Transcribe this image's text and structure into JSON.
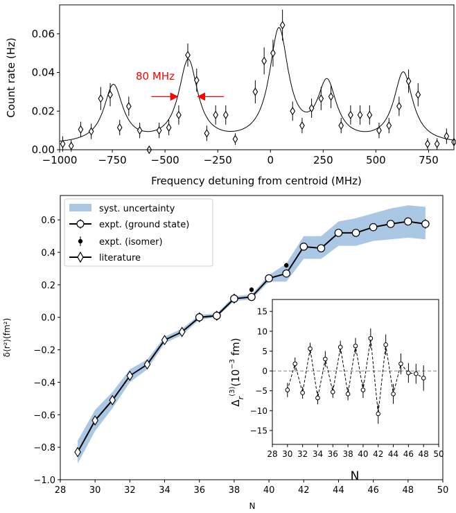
{
  "chart_data": [
    {
      "type": "scatter",
      "xlabel": "Frequency detuning from centroid (MHz)",
      "ylabel": "Count rate (Hz)",
      "xlim": [
        -1000,
        870
      ],
      "ylim": [
        0,
        0.075
      ],
      "xticks": [
        "−1000",
        "−750",
        "−500",
        "−250",
        "0",
        "250",
        "500",
        "750"
      ],
      "xtick_values": [
        -1000,
        -750,
        -500,
        -250,
        0,
        250,
        500,
        750
      ],
      "yticks": [
        "0.00",
        "0.02",
        "0.04",
        "0.06"
      ],
      "ytick_values": [
        0,
        0.02,
        0.04,
        0.06
      ],
      "annotation": {
        "text": "80 MHz",
        "color": "#ff0000",
        "arrow_from": [
          -440,
          0.0275
        ],
        "arrow_to": [
          -220,
          0.0275
        ]
      },
      "series": [
        {
          "kind": "data",
          "points": [
            {
              "x": -985,
              "y": 0.003,
              "err": 0.004
            },
            {
              "x": -945,
              "y": 0.002,
              "err": 0.003
            },
            {
              "x": -900,
              "y": 0.0105,
              "err": 0.004
            },
            {
              "x": -850,
              "y": 0.0095,
              "err": 0.004
            },
            {
              "x": -805,
              "y": 0.0265,
              "err": 0.006
            },
            {
              "x": -760,
              "y": 0.0285,
              "err": 0.006
            },
            {
              "x": -715,
              "y": 0.0115,
              "err": 0.004
            },
            {
              "x": -672,
              "y": 0.0225,
              "err": 0.005
            },
            {
              "x": -620,
              "y": 0.01,
              "err": 0.004
            },
            {
              "x": -575,
              "y": 0.0,
              "err": 0.002
            },
            {
              "x": -528,
              "y": 0.01,
              "err": 0.004
            },
            {
              "x": -482,
              "y": 0.0115,
              "err": 0.004
            },
            {
              "x": -435,
              "y": 0.018,
              "err": 0.005
            },
            {
              "x": -392,
              "y": 0.049,
              "err": 0.006
            },
            {
              "x": -350,
              "y": 0.036,
              "err": 0.006
            },
            {
              "x": -302,
              "y": 0.0085,
              "err": 0.004
            },
            {
              "x": -260,
              "y": 0.018,
              "err": 0.005
            },
            {
              "x": -212,
              "y": 0.018,
              "err": 0.005
            },
            {
              "x": -167,
              "y": 0.0055,
              "err": 0.003
            },
            {
              "x": -72,
              "y": 0.03,
              "err": 0.006
            },
            {
              "x": -30,
              "y": 0.046,
              "err": 0.007
            },
            {
              "x": 12,
              "y": 0.05,
              "err": 0.007
            },
            {
              "x": 57,
              "y": 0.0645,
              "err": 0.008
            },
            {
              "x": 105,
              "y": 0.02,
              "err": 0.005
            },
            {
              "x": 150,
              "y": 0.0125,
              "err": 0.004
            },
            {
              "x": 195,
              "y": 0.0215,
              "err": 0.005
            },
            {
              "x": 240,
              "y": 0.0265,
              "err": 0.006
            },
            {
              "x": 287,
              "y": 0.0275,
              "err": 0.006
            },
            {
              "x": 335,
              "y": 0.0125,
              "err": 0.004
            },
            {
              "x": 380,
              "y": 0.018,
              "err": 0.005
            },
            {
              "x": 425,
              "y": 0.018,
              "err": 0.005
            },
            {
              "x": 470,
              "y": 0.018,
              "err": 0.005
            },
            {
              "x": 515,
              "y": 0.01,
              "err": 0.004
            },
            {
              "x": 562,
              "y": 0.0125,
              "err": 0.004
            },
            {
              "x": 610,
              "y": 0.0225,
              "err": 0.005
            },
            {
              "x": 655,
              "y": 0.0355,
              "err": 0.006
            },
            {
              "x": 700,
              "y": 0.0285,
              "err": 0.006
            },
            {
              "x": 745,
              "y": 0.003,
              "err": 0.003
            },
            {
              "x": 790,
              "y": 0.003,
              "err": 0.003
            },
            {
              "x": 835,
              "y": 0.007,
              "err": 0.004
            },
            {
              "x": 870,
              "y": 0.004,
              "err": 0.003
            }
          ]
        },
        {
          "kind": "fit",
          "baseline": 0.0025,
          "width": 55,
          "peaks": [
            {
              "center": -745,
              "amplitude": 0.03
            },
            {
              "center": -390,
              "amplitude": 0.0425
            },
            {
              "center": 40,
              "amplitude": 0.058
            },
            {
              "center": 268,
              "amplitude": 0.03
            },
            {
              "center": 630,
              "amplitude": 0.0365
            }
          ]
        }
      ]
    },
    {
      "type": "line",
      "xlabel": "N",
      "ylabel": "δ⟨r²⟩(fm²)",
      "xlim": [
        28,
        50
      ],
      "ylim": [
        -1.0,
        0.75
      ],
      "xticks": [
        "28",
        "30",
        "32",
        "34",
        "36",
        "38",
        "40",
        "42",
        "44",
        "46",
        "48",
        "50"
      ],
      "xtick_values": [
        28,
        30,
        32,
        34,
        36,
        38,
        40,
        42,
        44,
        46,
        48,
        50
      ],
      "yticks": [
        "−1.0",
        "−0.8",
        "−0.6",
        "−0.4",
        "−0.2",
        "0.0",
        "0.2",
        "0.4",
        "0.6"
      ],
      "ytick_values": [
        -1.0,
        -0.8,
        -0.6,
        -0.4,
        -0.2,
        0.0,
        0.2,
        0.4,
        0.6
      ],
      "legend": {
        "placement": "upper-left",
        "entries": [
          "syst. uncertainty",
          "expt. (ground state)",
          "expt. (isomer)",
          "literature"
        ]
      },
      "band_color": "#aac8e4",
      "band": {
        "x": [
          29,
          30,
          31,
          32,
          33,
          34,
          35,
          36,
          37,
          38,
          39,
          40,
          41,
          42,
          43,
          44,
          45,
          46,
          47,
          48,
          49
        ],
        "lower": [
          -0.9,
          -0.7,
          -0.56,
          -0.4,
          -0.32,
          -0.16,
          -0.11,
          -0.015,
          0.0,
          0.1,
          0.11,
          0.22,
          0.22,
          0.36,
          0.36,
          0.44,
          0.44,
          0.47,
          0.48,
          0.49,
          0.48
        ],
        "upper": [
          -0.76,
          -0.57,
          -0.46,
          -0.32,
          -0.26,
          -0.12,
          -0.07,
          0.015,
          0.025,
          0.13,
          0.14,
          0.26,
          0.33,
          0.5,
          0.5,
          0.59,
          0.61,
          0.64,
          0.67,
          0.69,
          0.68
        ]
      },
      "ground_state": {
        "x": [
          36,
          37,
          38,
          39,
          40,
          41,
          42,
          43,
          44,
          45,
          46,
          47,
          48,
          49
        ],
        "y": [
          0.0,
          0.01,
          0.115,
          0.125,
          0.24,
          0.27,
          0.435,
          0.425,
          0.52,
          0.52,
          0.555,
          0.575,
          0.59,
          0.575
        ],
        "err": [
          0.01,
          0.01,
          0.01,
          0.01,
          0.01,
          0.02,
          0.015,
          0.015,
          0.015,
          0.015,
          0.015,
          0.015,
          0.015,
          0.03
        ]
      },
      "isomer": {
        "x": [
          39,
          41
        ],
        "y": [
          0.17,
          0.32
        ],
        "err": [
          0.015,
          0.015
        ]
      },
      "literature": {
        "x": [
          29,
          30,
          31,
          32,
          33,
          34,
          35,
          36,
          37,
          38
        ],
        "y": [
          -0.83,
          -0.635,
          -0.51,
          -0.36,
          -0.29,
          -0.14,
          -0.09,
          0.0,
          0.01,
          0.115
        ]
      }
    },
    {
      "type": "scatter",
      "xlabel": "N",
      "ylabel": "Δr(3)(10⁻³ fm)",
      "xlim": [
        28,
        50
      ],
      "ylim": [
        -18.5,
        18
      ],
      "xticks": [
        "28",
        "30",
        "32",
        "34",
        "36",
        "38",
        "40",
        "42",
        "44",
        "46",
        "48",
        "50"
      ],
      "xtick_values": [
        28,
        30,
        32,
        34,
        36,
        38,
        40,
        42,
        44,
        46,
        48,
        50
      ],
      "yticks": [
        "15",
        "10",
        "5",
        "0",
        "−5",
        "−10",
        "−15"
      ],
      "ytick_values": [
        15,
        10,
        5,
        0,
        -5,
        -10,
        -15
      ],
      "reference_line": 0,
      "points": [
        {
          "x": 30,
          "y": -4.8,
          "err": 1.8
        },
        {
          "x": 31,
          "y": 1.8,
          "err": 1.6
        },
        {
          "x": 32,
          "y": -5.5,
          "err": 1.5
        },
        {
          "x": 33,
          "y": 5.6,
          "err": 1.5
        },
        {
          "x": 34,
          "y": -6.8,
          "err": 1.6
        },
        {
          "x": 35,
          "y": 3.0,
          "err": 2.0
        },
        {
          "x": 36,
          "y": -5.3,
          "err": 1.5
        },
        {
          "x": 37,
          "y": 6.0,
          "err": 1.6
        },
        {
          "x": 38,
          "y": -5.8,
          "err": 1.6
        },
        {
          "x": 39,
          "y": 6.3,
          "err": 2.0
        },
        {
          "x": 40,
          "y": -4.8,
          "err": 2.0
        },
        {
          "x": 41,
          "y": 8.2,
          "err": 2.5
        },
        {
          "x": 42,
          "y": -10.8,
          "err": 2.5
        },
        {
          "x": 43,
          "y": 6.6,
          "err": 2.6
        },
        {
          "x": 44,
          "y": -5.8,
          "err": 2.5
        },
        {
          "x": 45,
          "y": 1.8,
          "err": 2.6
        },
        {
          "x": 46,
          "y": -0.5,
          "err": 2.5
        },
        {
          "x": 47,
          "y": -0.7,
          "err": 2.5
        },
        {
          "x": 48,
          "y": -1.8,
          "err": 3.2
        }
      ]
    }
  ]
}
